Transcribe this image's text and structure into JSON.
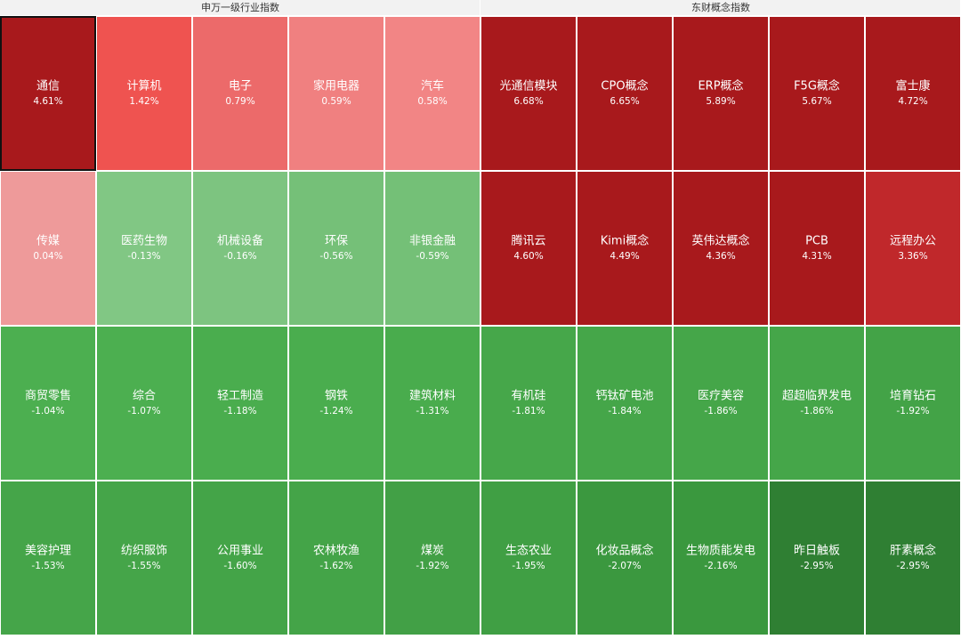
{
  "chart_data": [
    {
      "type": "heatmap",
      "title": "申万一级行业指数",
      "categories": [
        "通信",
        "计算机",
        "电子",
        "家用电器",
        "汽车",
        "传媒",
        "医药生物",
        "机械设备",
        "环保",
        "非银金融",
        "商贸零售",
        "综合",
        "轻工制造",
        "钢铁",
        "建筑材料",
        "美容护理",
        "纺织服饰",
        "公用事业",
        "农林牧渔",
        "煤炭"
      ],
      "values": [
        4.61,
        1.42,
        0.79,
        0.59,
        0.58,
        0.04,
        -0.13,
        -0.16,
        -0.56,
        -0.59,
        -1.04,
        -1.07,
        -1.18,
        -1.24,
        -1.31,
        -1.53,
        -1.55,
        -1.6,
        -1.62,
        -1.92
      ],
      "value_labels": [
        "4.61%",
        "1.42%",
        "0.79%",
        "0.59%",
        "0.58%",
        "0.04%",
        "-0.13%",
        "-0.16%",
        "-0.56%",
        "-0.59%",
        "-1.04%",
        "-1.07%",
        "-1.18%",
        "-1.24%",
        "-1.31%",
        "-1.53%",
        "-1.55%",
        "-1.60%",
        "-1.62%",
        "-1.92%"
      ],
      "colors": [
        "#a8191c",
        "#ef5350",
        "#ec6a6a",
        "#f08080",
        "#f28585",
        "#ee9a9a",
        "#81c784",
        "#7dc480",
        "#75c078",
        "#74c077",
        "#4caf50",
        "#4caf50",
        "#4aad4e",
        "#4aad4e",
        "#49ac4d",
        "#45a549",
        "#45a549",
        "#44a448",
        "#44a448",
        "#42a046"
      ],
      "selected": 0
    },
    {
      "type": "heatmap",
      "title": "东财概念指数",
      "categories": [
        "光通信模块",
        "CPO概念",
        "ERP概念",
        "F5G概念",
        "富士康",
        "腾讯云",
        "Kimi概念",
        "英伟达概念",
        "PCB",
        "远程办公",
        "有机硅",
        "钙钛矿电池",
        "医疗美容",
        "超超临界发电",
        "培育钻石",
        "生态农业",
        "化妆品概念",
        "生物质能发电",
        "昨日触板",
        "肝素概念"
      ],
      "values": [
        6.68,
        6.65,
        5.89,
        5.67,
        4.72,
        4.6,
        4.49,
        4.36,
        4.31,
        3.36,
        -1.81,
        -1.84,
        -1.86,
        -1.86,
        -1.92,
        -1.95,
        -2.07,
        -2.16,
        -2.95,
        -2.95
      ],
      "value_labels": [
        "6.68%",
        "6.65%",
        "5.89%",
        "5.67%",
        "4.72%",
        "4.60%",
        "4.49%",
        "4.36%",
        "4.31%",
        "3.36%",
        "-1.81%",
        "-1.84%",
        "-1.86%",
        "-1.86%",
        "-1.92%",
        "-1.95%",
        "-2.07%",
        "-2.16%",
        "-2.95%",
        "-2.95%"
      ],
      "colors": [
        "#a8191c",
        "#a8191c",
        "#a8191c",
        "#a8191c",
        "#a8191c",
        "#a8191c",
        "#a8191c",
        "#a8191c",
        "#a8191c",
        "#c0282b",
        "#46a74a",
        "#45a649",
        "#45a649",
        "#45a649",
        "#43a347",
        "#409f44",
        "#3b983f",
        "#3a983e",
        "#2f7f33",
        "#2f7f33"
      ]
    }
  ]
}
